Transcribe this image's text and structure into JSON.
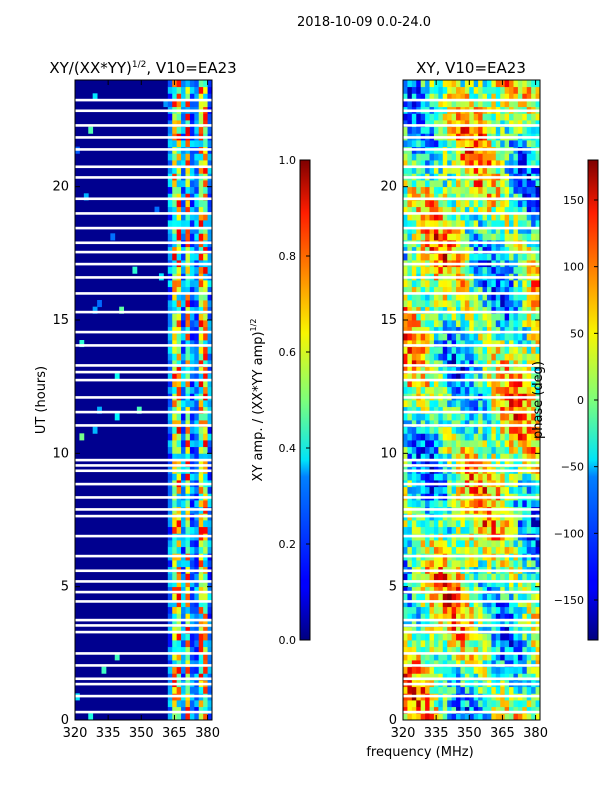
{
  "figure_title": "2018-10-09 0.0-24.0",
  "chart_data": [
    {
      "type": "heatmap",
      "title": "XY/(XX*YY)^1/2, V10=EA23",
      "title_main": "XY/(XX*YY)",
      "title_sup": "1/2",
      "title_tail": ", V10=EA23",
      "xlabel": "",
      "ylabel": "UT (hours)",
      "xlim": [
        320,
        382
      ],
      "ylim": [
        0,
        24
      ],
      "xticks": [
        320,
        335,
        350,
        365,
        380
      ],
      "yticks": [
        0,
        5,
        10,
        15,
        20
      ],
      "value_kind": "amplitude",
      "colorbar": {
        "label": "XY amp. / (XX*YY amp)^1/2",
        "label_main": "XY amp. / (XX*YY amp)",
        "label_sup": "1/2",
        "range": [
          0.0,
          1.0
        ],
        "ticks": [
          "0.0",
          "0.2",
          "0.4",
          "0.6",
          "0.8",
          "1.0"
        ]
      }
    },
    {
      "type": "heatmap",
      "title": "XY, V10=EA23",
      "xlabel": "frequency (MHz)",
      "ylabel": "",
      "xlim": [
        320,
        382
      ],
      "ylim": [
        0,
        24
      ],
      "xticks": [
        320,
        335,
        350,
        365,
        380
      ],
      "yticks": [
        0,
        5,
        10,
        15,
        20
      ],
      "value_kind": "phase",
      "colorbar": {
        "label": "phase (deg)",
        "range": [
          -180,
          180
        ],
        "ticks": [
          -150,
          -100,
          -50,
          0,
          50,
          100,
          150
        ]
      }
    }
  ],
  "flagged_hours": [
    0.3,
    0.9,
    1.35,
    1.55,
    2.05,
    2.5,
    3.3,
    3.55,
    3.75,
    4.45,
    4.8,
    5.2,
    5.6,
    6.15,
    6.9,
    7.65,
    7.9,
    8.35,
    8.85,
    9.35,
    9.55,
    9.75,
    11.05,
    11.55,
    12.1,
    12.75,
    13.05,
    13.3,
    14.05,
    14.55,
    15.3,
    16.0,
    16.6,
    17.1,
    17.55,
    17.9,
    18.45,
    19.0,
    19.55,
    20.35,
    20.75,
    21.4,
    21.85,
    22.3,
    22.85,
    23.25
  ],
  "bright_channels_mhz": [
    [
      364,
      368
    ],
    [
      370,
      372.5
    ],
    [
      375.5,
      377.5
    ],
    [
      379,
      380.5
    ]
  ]
}
